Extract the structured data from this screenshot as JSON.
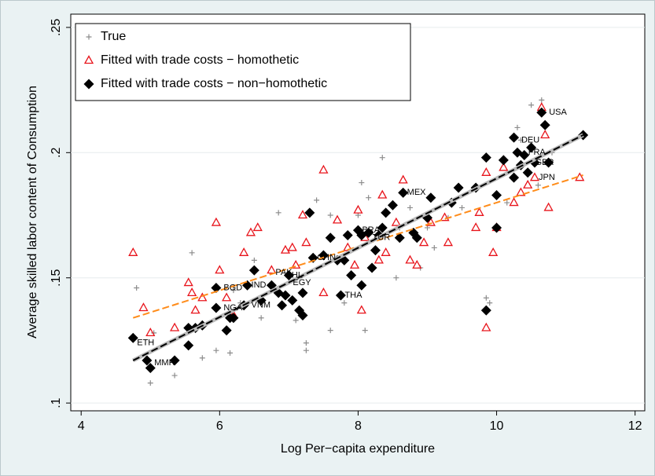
{
  "chart_data": {
    "type": "scatter",
    "x_label": "Log Per−capita expenditure",
    "y_label": "Average skilled labor content of Consumption",
    "xlim": [
      3.85,
      12.14
    ],
    "ylim": [
      0.0969,
      0.2553
    ],
    "xticks": [
      4,
      6,
      8,
      10,
      12
    ],
    "yticks": [
      {
        "value": 0.1,
        "label": ".1"
      },
      {
        "value": 0.15,
        "label": ".15"
      },
      {
        "value": 0.2,
        "label": ".2"
      },
      {
        "value": 0.25,
        "label": ".25"
      }
    ],
    "legend": "top-left",
    "series": [
      {
        "name": "True",
        "marker": "plus",
        "color": "#8c8c8c",
        "x": [
          4.8,
          5.0,
          5.05,
          5.35,
          5.6,
          5.75,
          5.95,
          6.15,
          6.3,
          6.6,
          6.85,
          7.1,
          7.25,
          7.25,
          7.4,
          7.6,
          7.8,
          8.0,
          8.05,
          8.1,
          8.15,
          8.35,
          8.55,
          8.75,
          8.9,
          9.1,
          9.3,
          9.5,
          9.85,
          9.9,
          10.15,
          10.3,
          10.35,
          10.5,
          10.65,
          10.6,
          10.8,
          7.6,
          8.6,
          9.0,
          6.5,
          6.2
        ],
        "values": [
          0.146,
          0.108,
          0.128,
          0.111,
          0.16,
          0.118,
          0.121,
          0.12,
          0.14,
          0.134,
          0.176,
          0.133,
          0.124,
          0.121,
          0.181,
          0.129,
          0.14,
          0.175,
          0.188,
          0.129,
          0.182,
          0.198,
          0.15,
          0.178,
          0.154,
          0.162,
          0.174,
          0.178,
          0.142,
          0.14,
          0.18,
          0.21,
          0.205,
          0.219,
          0.221,
          0.187,
          0.2,
          0.175,
          0.17,
          0.17,
          0.157,
          0.145
        ]
      },
      {
        "name": "Fitted with trade costs − homothetic",
        "marker": "triangle",
        "color": "#e8141b",
        "x": [
          4.75,
          4.9,
          5.0,
          5.35,
          5.55,
          5.6,
          5.65,
          5.75,
          5.95,
          6.0,
          6.1,
          6.2,
          6.35,
          6.45,
          6.55,
          6.75,
          6.95,
          7.05,
          7.1,
          7.2,
          7.25,
          7.5,
          7.5,
          7.7,
          7.85,
          7.95,
          8.0,
          8.05,
          8.1,
          8.3,
          8.35,
          8.4,
          8.55,
          8.65,
          8.75,
          8.85,
          8.95,
          9.05,
          9.25,
          9.3,
          9.7,
          9.75,
          9.85,
          9.95,
          10.0,
          10.1,
          10.25,
          10.35,
          10.45,
          10.55,
          10.7,
          10.75,
          11.2,
          9.85,
          10.65
        ],
        "values": [
          0.16,
          0.138,
          0.128,
          0.13,
          0.148,
          0.144,
          0.137,
          0.142,
          0.172,
          0.153,
          0.142,
          0.135,
          0.16,
          0.168,
          0.17,
          0.153,
          0.161,
          0.162,
          0.155,
          0.175,
          0.164,
          0.193,
          0.144,
          0.173,
          0.162,
          0.155,
          0.177,
          0.137,
          0.166,
          0.157,
          0.183,
          0.16,
          0.172,
          0.189,
          0.157,
          0.155,
          0.164,
          0.172,
          0.174,
          0.164,
          0.17,
          0.176,
          0.13,
          0.16,
          0.17,
          0.194,
          0.18,
          0.184,
          0.187,
          0.19,
          0.207,
          0.178,
          0.19,
          0.192,
          0.218
        ]
      },
      {
        "name": "Fitted with trade costs − non−homothetic",
        "marker": "diamond",
        "color": "#000000",
        "x": [
          4.75,
          4.95,
          5.0,
          5.35,
          5.55,
          5.55,
          5.65,
          5.75,
          5.95,
          5.95,
          6.1,
          6.15,
          6.2,
          6.35,
          6.4,
          6.5,
          6.6,
          6.75,
          6.85,
          6.9,
          6.95,
          7.0,
          7.05,
          7.15,
          7.2,
          7.2,
          7.3,
          7.35,
          7.5,
          7.6,
          7.7,
          7.75,
          7.8,
          7.85,
          7.9,
          8.0,
          8.05,
          8.05,
          8.15,
          8.2,
          8.25,
          8.3,
          8.35,
          8.4,
          8.5,
          8.6,
          8.65,
          8.8,
          8.85,
          9.0,
          9.05,
          9.35,
          9.45,
          9.7,
          9.85,
          9.85,
          10.0,
          10.0,
          10.1,
          10.25,
          10.25,
          10.3,
          10.35,
          10.4,
          10.45,
          10.5,
          10.55,
          10.65,
          10.7,
          10.75,
          11.25
        ],
        "values": [
          0.126,
          0.117,
          0.114,
          0.117,
          0.123,
          0.13,
          0.13,
          0.131,
          0.138,
          0.146,
          0.129,
          0.134,
          0.134,
          0.139,
          0.147,
          0.153,
          0.141,
          0.147,
          0.144,
          0.139,
          0.143,
          0.151,
          0.141,
          0.137,
          0.144,
          0.135,
          0.176,
          0.158,
          0.159,
          0.166,
          0.157,
          0.143,
          0.157,
          0.167,
          0.151,
          0.169,
          0.147,
          0.167,
          0.168,
          0.154,
          0.161,
          0.167,
          0.17,
          0.176,
          0.179,
          0.166,
          0.184,
          0.168,
          0.166,
          0.174,
          0.182,
          0.18,
          0.186,
          0.186,
          0.198,
          0.137,
          0.183,
          0.17,
          0.197,
          0.206,
          0.19,
          0.2,
          0.195,
          0.199,
          0.192,
          0.202,
          0.196,
          0.216,
          0.211,
          0.196,
          0.207
        ]
      }
    ],
    "fit_lines": [
      {
        "color": "#ff8c1a",
        "x": [
          4.75,
          11.25
        ],
        "values": [
          0.134,
          0.191
        ]
      },
      {
        "color": "#000000",
        "x": [
          4.75,
          11.25
        ],
        "values": [
          0.117,
          0.207
        ]
      }
    ],
    "annotations": [
      {
        "text": "USA",
        "x": 10.7,
        "y": 0.216
      },
      {
        "text": "DEU",
        "x": 10.3,
        "y": 0.205
      },
      {
        "text": "FRA",
        "x": 10.4,
        "y": 0.2
      },
      {
        "text": "GBR",
        "x": 10.5,
        "y": 0.196
      },
      {
        "text": "JPN",
        "x": 10.55,
        "y": 0.19
      },
      {
        "text": "MEX",
        "x": 8.65,
        "y": 0.184
      },
      {
        "text": "CHN",
        "x": 7.35,
        "y": 0.158
      },
      {
        "text": "PAK",
        "x": 6.75,
        "y": 0.152
      },
      {
        "text": "PHL",
        "x": 6.9,
        "y": 0.151
      },
      {
        "text": "IND",
        "x": 6.4,
        "y": 0.147
      },
      {
        "text": "EGY",
        "x": 7.0,
        "y": 0.148
      },
      {
        "text": "BGD",
        "x": 6.0,
        "y": 0.146
      },
      {
        "text": "NGA",
        "x": 6.0,
        "y": 0.138
      },
      {
        "text": "VNM",
        "x": 6.4,
        "y": 0.139
      },
      {
        "text": "THA",
        "x": 7.75,
        "y": 0.143
      },
      {
        "text": "TUR",
        "x": 8.15,
        "y": 0.166
      },
      {
        "text": "BRA",
        "x": 8.0,
        "y": 0.169
      },
      {
        "text": "ETH",
        "x": 4.75,
        "y": 0.124
      },
      {
        "text": "MMR",
        "x": 5.0,
        "y": 0.116
      }
    ]
  }
}
